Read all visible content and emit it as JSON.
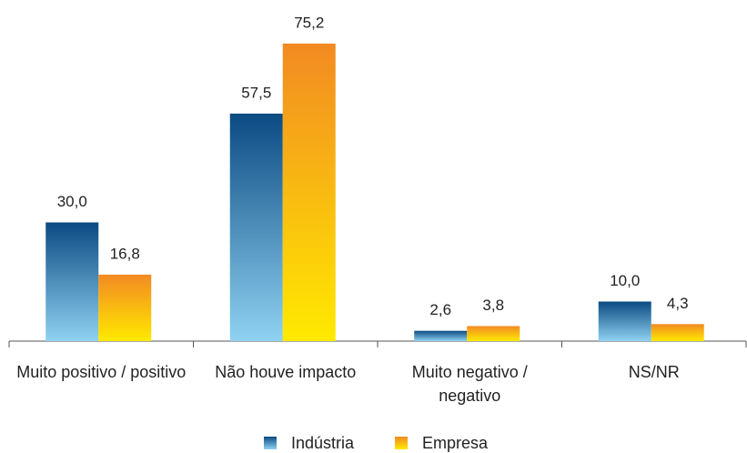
{
  "chart_data": {
    "type": "bar",
    "categories": [
      "Muito positivo / positivo",
      "Não houve impacto",
      "Muito negativo / negativo",
      "NS/NR"
    ],
    "series": [
      {
        "name": "Indústria",
        "color": "#0b4a82",
        "values": [
          30.0,
          57.5,
          2.6,
          10.0
        ],
        "value_labels": [
          "30,0",
          "57,5",
          "2,6",
          "10,0"
        ]
      },
      {
        "name": "Empresa",
        "color": "#f28a22",
        "values": [
          16.8,
          75.2,
          3.8,
          4.3
        ],
        "value_labels": [
          "16,8",
          "75,2",
          "3,8",
          "4,3"
        ]
      }
    ],
    "ylim": [
      0,
      80
    ],
    "legend": "bottom"
  }
}
